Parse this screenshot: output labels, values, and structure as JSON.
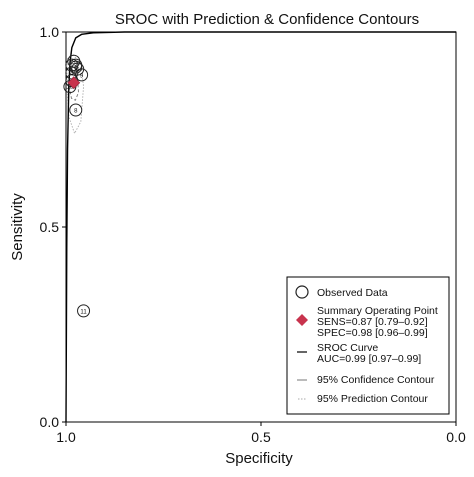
{
  "chart_data": {
    "type": "scatter",
    "title": "SROC with Prediction & Confidence Contours",
    "xlabel": "Specificity",
    "ylabel": "Sensitivity",
    "xlim": [
      1.0,
      0.0
    ],
    "ylim": [
      0.0,
      1.0
    ],
    "x_reversed": true,
    "x_ticks": [
      "1.0",
      "0.5",
      "0.0"
    ],
    "y_ticks": [
      "0.0",
      "0.5",
      "1.0"
    ],
    "grid": false,
    "legend_position": "bottom-right",
    "observed": [
      {
        "label": "1",
        "spec": 0.985,
        "sens": 0.915
      },
      {
        "label": "2",
        "spec": 0.985,
        "sens": 0.875
      },
      {
        "label": "3",
        "spec": 0.975,
        "sens": 0.91
      },
      {
        "label": "4",
        "spec": 0.985,
        "sens": 0.895
      },
      {
        "label": "5",
        "spec": 0.98,
        "sens": 0.925
      },
      {
        "label": "6",
        "spec": 0.97,
        "sens": 0.905
      },
      {
        "label": "7",
        "spec": 0.975,
        "sens": 0.915
      },
      {
        "label": "8",
        "spec": 0.975,
        "sens": 0.8
      },
      {
        "label": "9",
        "spec": 0.96,
        "sens": 0.89
      },
      {
        "label": "10",
        "spec": 0.99,
        "sens": 0.86
      },
      {
        "label": "11",
        "spec": 0.955,
        "sens": 0.285
      }
    ],
    "summary_point": {
      "spec": 0.98,
      "sens": 0.87
    },
    "sroc_curve": [
      {
        "spec": 1.0,
        "sens": 0.0
      },
      {
        "spec": 0.998,
        "sens": 0.45
      },
      {
        "spec": 0.996,
        "sens": 0.7
      },
      {
        "spec": 0.993,
        "sens": 0.85
      },
      {
        "spec": 0.99,
        "sens": 0.92
      },
      {
        "spec": 0.985,
        "sens": 0.96
      },
      {
        "spec": 0.975,
        "sens": 0.985
      },
      {
        "spec": 0.96,
        "sens": 0.994
      },
      {
        "spec": 0.93,
        "sens": 0.998
      },
      {
        "spec": 0.85,
        "sens": 1.0
      },
      {
        "spec": 0.5,
        "sens": 1.0
      },
      {
        "spec": 0.0,
        "sens": 1.0
      }
    ],
    "confidence_contour": [
      {
        "spec": 0.99,
        "sens": 0.9
      },
      {
        "spec": 0.982,
        "sens": 0.905
      },
      {
        "spec": 0.97,
        "sens": 0.88
      },
      {
        "spec": 0.968,
        "sens": 0.845
      },
      {
        "spec": 0.976,
        "sens": 0.825
      },
      {
        "spec": 0.986,
        "sens": 0.83
      },
      {
        "spec": 0.992,
        "sens": 0.86
      }
    ],
    "prediction_contour": [
      {
        "spec": 0.997,
        "sens": 0.93
      },
      {
        "spec": 0.985,
        "sens": 0.945
      },
      {
        "spec": 0.962,
        "sens": 0.92
      },
      {
        "spec": 0.955,
        "sens": 0.86
      },
      {
        "spec": 0.962,
        "sens": 0.77
      },
      {
        "spec": 0.978,
        "sens": 0.74
      },
      {
        "spec": 0.992,
        "sens": 0.78
      },
      {
        "spec": 0.998,
        "sens": 0.86
      }
    ],
    "legend": {
      "observed": "Observed Data",
      "summary_title": "Summary Operating Point",
      "summary_sens": "SENS=0.87 [0.79–0.92]",
      "summary_spec": "SPEC=0.98 [0.96–0.99]",
      "curve_title": "SROC Curve",
      "curve_auc": "AUC=0.99 [0.97–0.99]",
      "confidence": "95% Confidence Contour",
      "prediction": "95% Prediction Contour"
    },
    "colors": {
      "summary_point": "#c8334d",
      "observed_marker": "#222222",
      "observed_label": "#4a8a3a",
      "curve": "#000000",
      "confidence": "#777777",
      "prediction": "#aaaaaa"
    }
  }
}
